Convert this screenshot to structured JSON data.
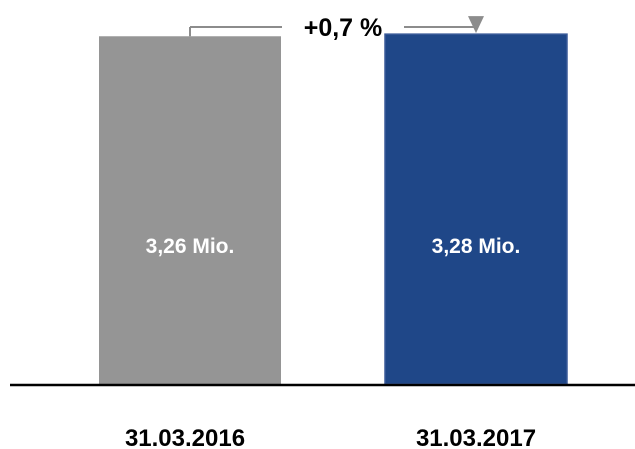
{
  "chart_data": {
    "type": "bar",
    "categories": [
      "31.03.2016",
      "31.03.2017"
    ],
    "values": [
      3.26,
      3.28
    ],
    "value_labels": [
      "3,26 Mio.",
      "3,28 Mio."
    ],
    "change_annotation": "+0,7 %",
    "ylim": [
      0,
      3.6
    ],
    "grid": false,
    "colors": {
      "bar_2016": "#959595",
      "bar_2017": "#1f4788",
      "bar_2017_border": "#3a5a99",
      "axis": "#000000",
      "arrow": "#8c8c8c",
      "value_label": "#ffffff",
      "category_label": "#000000"
    }
  }
}
